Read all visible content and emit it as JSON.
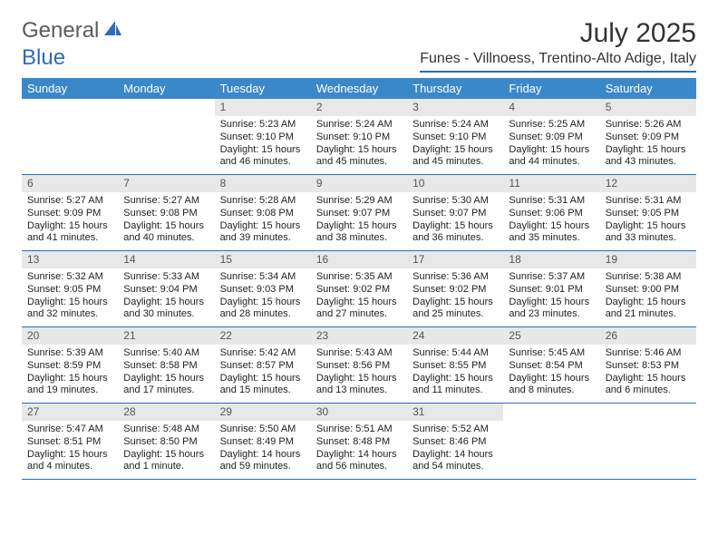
{
  "logo": {
    "text1": "General",
    "text2": "Blue"
  },
  "title": "July 2025",
  "location": "Funes - Villnoess, Trentino-Alto Adige, Italy",
  "colors": {
    "header_bg": "#3b88c9",
    "header_border": "#2a6db8",
    "daynum_bg": "#e8e8e8",
    "logo_blue": "#2a6db8"
  },
  "weekdays": [
    "Sunday",
    "Monday",
    "Tuesday",
    "Wednesday",
    "Thursday",
    "Friday",
    "Saturday"
  ],
  "weeks": [
    [
      {
        "num": "",
        "sunrise": "",
        "sunset": "",
        "daylight": ""
      },
      {
        "num": "",
        "sunrise": "",
        "sunset": "",
        "daylight": ""
      },
      {
        "num": "1",
        "sunrise": "Sunrise: 5:23 AM",
        "sunset": "Sunset: 9:10 PM",
        "daylight": "Daylight: 15 hours and 46 minutes."
      },
      {
        "num": "2",
        "sunrise": "Sunrise: 5:24 AM",
        "sunset": "Sunset: 9:10 PM",
        "daylight": "Daylight: 15 hours and 45 minutes."
      },
      {
        "num": "3",
        "sunrise": "Sunrise: 5:24 AM",
        "sunset": "Sunset: 9:10 PM",
        "daylight": "Daylight: 15 hours and 45 minutes."
      },
      {
        "num": "4",
        "sunrise": "Sunrise: 5:25 AM",
        "sunset": "Sunset: 9:09 PM",
        "daylight": "Daylight: 15 hours and 44 minutes."
      },
      {
        "num": "5",
        "sunrise": "Sunrise: 5:26 AM",
        "sunset": "Sunset: 9:09 PM",
        "daylight": "Daylight: 15 hours and 43 minutes."
      }
    ],
    [
      {
        "num": "6",
        "sunrise": "Sunrise: 5:27 AM",
        "sunset": "Sunset: 9:09 PM",
        "daylight": "Daylight: 15 hours and 41 minutes."
      },
      {
        "num": "7",
        "sunrise": "Sunrise: 5:27 AM",
        "sunset": "Sunset: 9:08 PM",
        "daylight": "Daylight: 15 hours and 40 minutes."
      },
      {
        "num": "8",
        "sunrise": "Sunrise: 5:28 AM",
        "sunset": "Sunset: 9:08 PM",
        "daylight": "Daylight: 15 hours and 39 minutes."
      },
      {
        "num": "9",
        "sunrise": "Sunrise: 5:29 AM",
        "sunset": "Sunset: 9:07 PM",
        "daylight": "Daylight: 15 hours and 38 minutes."
      },
      {
        "num": "10",
        "sunrise": "Sunrise: 5:30 AM",
        "sunset": "Sunset: 9:07 PM",
        "daylight": "Daylight: 15 hours and 36 minutes."
      },
      {
        "num": "11",
        "sunrise": "Sunrise: 5:31 AM",
        "sunset": "Sunset: 9:06 PM",
        "daylight": "Daylight: 15 hours and 35 minutes."
      },
      {
        "num": "12",
        "sunrise": "Sunrise: 5:31 AM",
        "sunset": "Sunset: 9:05 PM",
        "daylight": "Daylight: 15 hours and 33 minutes."
      }
    ],
    [
      {
        "num": "13",
        "sunrise": "Sunrise: 5:32 AM",
        "sunset": "Sunset: 9:05 PM",
        "daylight": "Daylight: 15 hours and 32 minutes."
      },
      {
        "num": "14",
        "sunrise": "Sunrise: 5:33 AM",
        "sunset": "Sunset: 9:04 PM",
        "daylight": "Daylight: 15 hours and 30 minutes."
      },
      {
        "num": "15",
        "sunrise": "Sunrise: 5:34 AM",
        "sunset": "Sunset: 9:03 PM",
        "daylight": "Daylight: 15 hours and 28 minutes."
      },
      {
        "num": "16",
        "sunrise": "Sunrise: 5:35 AM",
        "sunset": "Sunset: 9:02 PM",
        "daylight": "Daylight: 15 hours and 27 minutes."
      },
      {
        "num": "17",
        "sunrise": "Sunrise: 5:36 AM",
        "sunset": "Sunset: 9:02 PM",
        "daylight": "Daylight: 15 hours and 25 minutes."
      },
      {
        "num": "18",
        "sunrise": "Sunrise: 5:37 AM",
        "sunset": "Sunset: 9:01 PM",
        "daylight": "Daylight: 15 hours and 23 minutes."
      },
      {
        "num": "19",
        "sunrise": "Sunrise: 5:38 AM",
        "sunset": "Sunset: 9:00 PM",
        "daylight": "Daylight: 15 hours and 21 minutes."
      }
    ],
    [
      {
        "num": "20",
        "sunrise": "Sunrise: 5:39 AM",
        "sunset": "Sunset: 8:59 PM",
        "daylight": "Daylight: 15 hours and 19 minutes."
      },
      {
        "num": "21",
        "sunrise": "Sunrise: 5:40 AM",
        "sunset": "Sunset: 8:58 PM",
        "daylight": "Daylight: 15 hours and 17 minutes."
      },
      {
        "num": "22",
        "sunrise": "Sunrise: 5:42 AM",
        "sunset": "Sunset: 8:57 PM",
        "daylight": "Daylight: 15 hours and 15 minutes."
      },
      {
        "num": "23",
        "sunrise": "Sunrise: 5:43 AM",
        "sunset": "Sunset: 8:56 PM",
        "daylight": "Daylight: 15 hours and 13 minutes."
      },
      {
        "num": "24",
        "sunrise": "Sunrise: 5:44 AM",
        "sunset": "Sunset: 8:55 PM",
        "daylight": "Daylight: 15 hours and 11 minutes."
      },
      {
        "num": "25",
        "sunrise": "Sunrise: 5:45 AM",
        "sunset": "Sunset: 8:54 PM",
        "daylight": "Daylight: 15 hours and 8 minutes."
      },
      {
        "num": "26",
        "sunrise": "Sunrise: 5:46 AM",
        "sunset": "Sunset: 8:53 PM",
        "daylight": "Daylight: 15 hours and 6 minutes."
      }
    ],
    [
      {
        "num": "27",
        "sunrise": "Sunrise: 5:47 AM",
        "sunset": "Sunset: 8:51 PM",
        "daylight": "Daylight: 15 hours and 4 minutes."
      },
      {
        "num": "28",
        "sunrise": "Sunrise: 5:48 AM",
        "sunset": "Sunset: 8:50 PM",
        "daylight": "Daylight: 15 hours and 1 minute."
      },
      {
        "num": "29",
        "sunrise": "Sunrise: 5:50 AM",
        "sunset": "Sunset: 8:49 PM",
        "daylight": "Daylight: 14 hours and 59 minutes."
      },
      {
        "num": "30",
        "sunrise": "Sunrise: 5:51 AM",
        "sunset": "Sunset: 8:48 PM",
        "daylight": "Daylight: 14 hours and 56 minutes."
      },
      {
        "num": "31",
        "sunrise": "Sunrise: 5:52 AM",
        "sunset": "Sunset: 8:46 PM",
        "daylight": "Daylight: 14 hours and 54 minutes."
      },
      {
        "num": "",
        "sunrise": "",
        "sunset": "",
        "daylight": ""
      },
      {
        "num": "",
        "sunrise": "",
        "sunset": "",
        "daylight": ""
      }
    ]
  ]
}
